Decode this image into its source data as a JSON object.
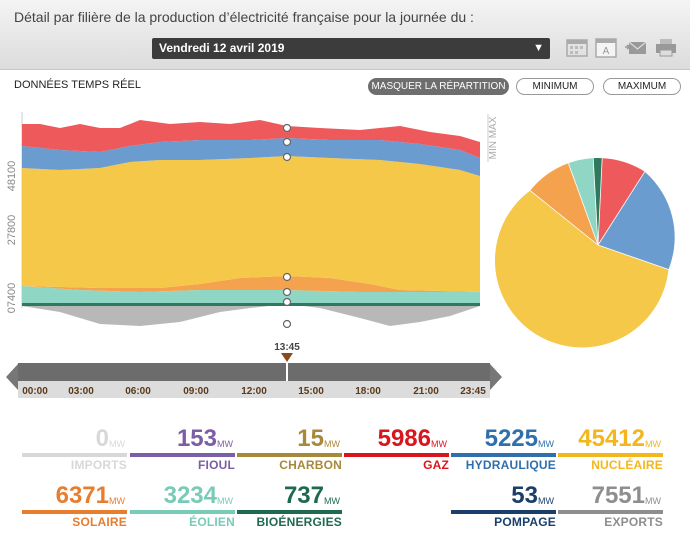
{
  "header": {
    "title": "Détail par filière de la production d’électricité française pour la journée du :",
    "date": "Vendredi 12 avril 2019",
    "icons": [
      "calendar-icon",
      "calendar-day-icon",
      "mail-icon",
      "print-icon"
    ]
  },
  "toolbar": {
    "label": "DONNÉES TEMPS RÉEL",
    "hide_split": "MASQUER LA RÉPARTITION",
    "minimum": "MINIMUM",
    "maximum": "MAXIMUM"
  },
  "chart": {
    "y_ticks": [
      "07400",
      "27800",
      "48100"
    ],
    "min_max_label": "MIN MAX",
    "colors": {
      "nucleaire": "#f5c84a",
      "hydraulique": "#6b9ccf",
      "gaz": "#ee5a5c",
      "eolien": "#8fd7c4",
      "solaire": "#f4a24e",
      "bio": "#2f7a5f",
      "exports": "#b8b8b8"
    }
  },
  "timeline": {
    "cursor_time": "13:45",
    "ticks": [
      "00:00",
      "03:00",
      "06:00",
      "09:00",
      "12:00",
      "15:00",
      "18:00",
      "21:00",
      "23:45"
    ],
    "position": 0.575
  },
  "tiles": [
    {
      "value": "0",
      "unit": "MW",
      "name": "IMPORTS",
      "color": "#d8d8d8"
    },
    {
      "value": "153",
      "unit": "MW",
      "name": "FIOUL",
      "color": "#7b5ea6"
    },
    {
      "value": "15",
      "unit": "MW",
      "name": "CHARBON",
      "color": "#a8883b"
    },
    {
      "value": "5986",
      "unit": "MW",
      "name": "GAZ",
      "color": "#d9151d"
    },
    {
      "value": "5225",
      "unit": "MW",
      "name": "HYDRAULIQUE",
      "color": "#2f6fae"
    },
    {
      "value": "45412",
      "unit": "MW",
      "name": "NUCLÉAIRE",
      "color": "#f3b61c"
    },
    {
      "value": "6371",
      "unit": "MW",
      "name": "SOLAIRE",
      "color": "#e87d2e"
    },
    {
      "value": "3234",
      "unit": "MW",
      "name": "ÉOLIEN",
      "color": "#78cbb7"
    },
    {
      "value": "737",
      "unit": "MW",
      "name": "BIOÉNERGIES",
      "color": "#1f6a4f"
    },
    {
      "value": "53",
      "unit": "MW",
      "name": "POMPAGE",
      "color": "#1b3f6b"
    },
    {
      "value": "7551",
      "unit": "MW",
      "name": "EXPORTS",
      "color": "#8e8e8e"
    }
  ]
}
